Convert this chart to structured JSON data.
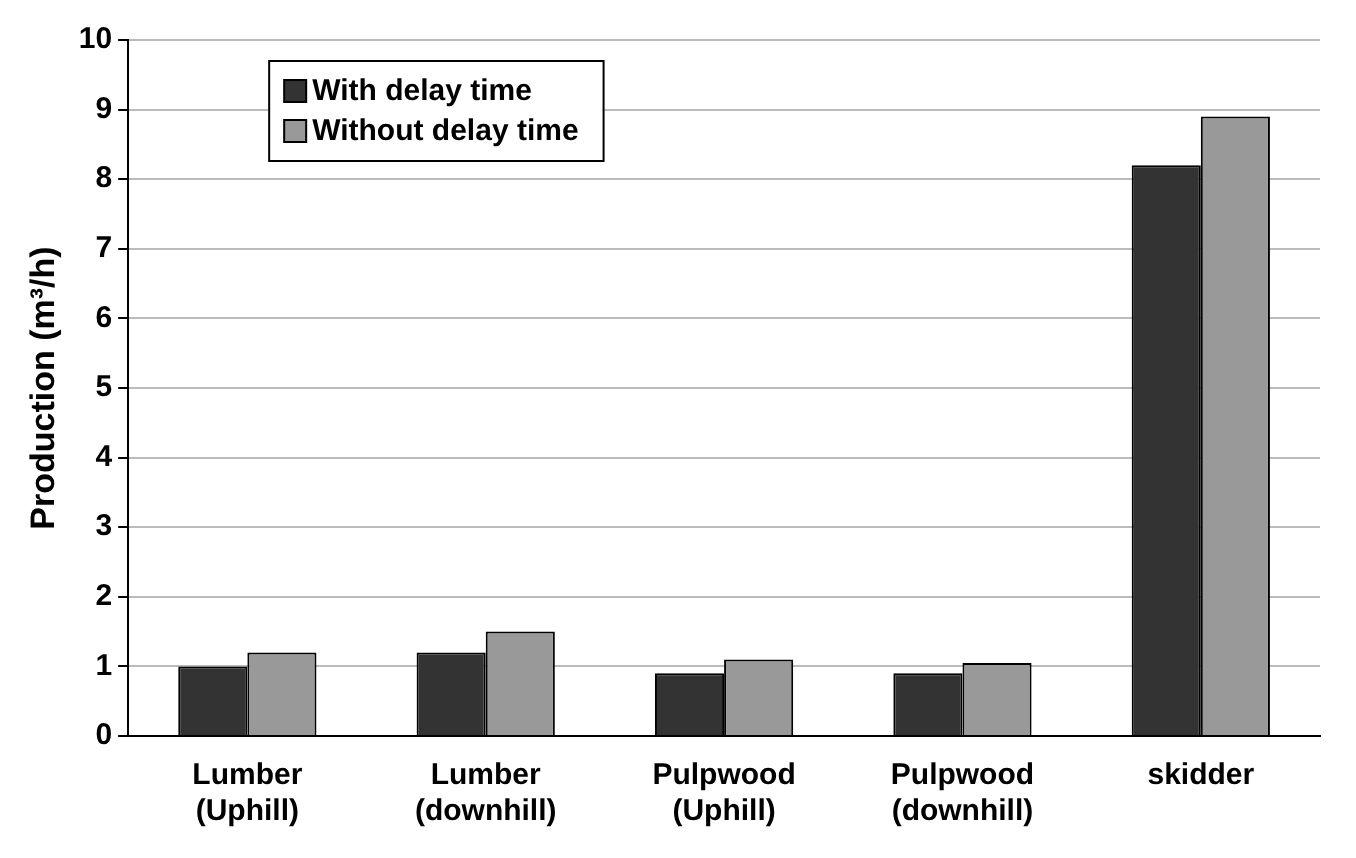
{
  "chart_data": {
    "type": "bar",
    "ylabel": "Production (m³/h)",
    "categories": [
      "Lumber (Uphill)",
      "Lumber (downhill)",
      "Pulpwood (Uphill)",
      "Pulpwood (downhill)",
      "skidder"
    ],
    "series": [
      {
        "name": "With delay time",
        "color": "#333333",
        "values": [
          1.0,
          1.2,
          0.9,
          0.9,
          8.2
        ]
      },
      {
        "name": "Without delay time",
        "color": "#999999",
        "values": [
          1.2,
          1.5,
          1.1,
          1.05,
          8.9
        ]
      }
    ],
    "ylim": [
      0,
      10
    ],
    "yticks": [
      0,
      1,
      2,
      3,
      4,
      5,
      6,
      7,
      8,
      9,
      10
    ],
    "grid": "y",
    "legend": "top left"
  }
}
